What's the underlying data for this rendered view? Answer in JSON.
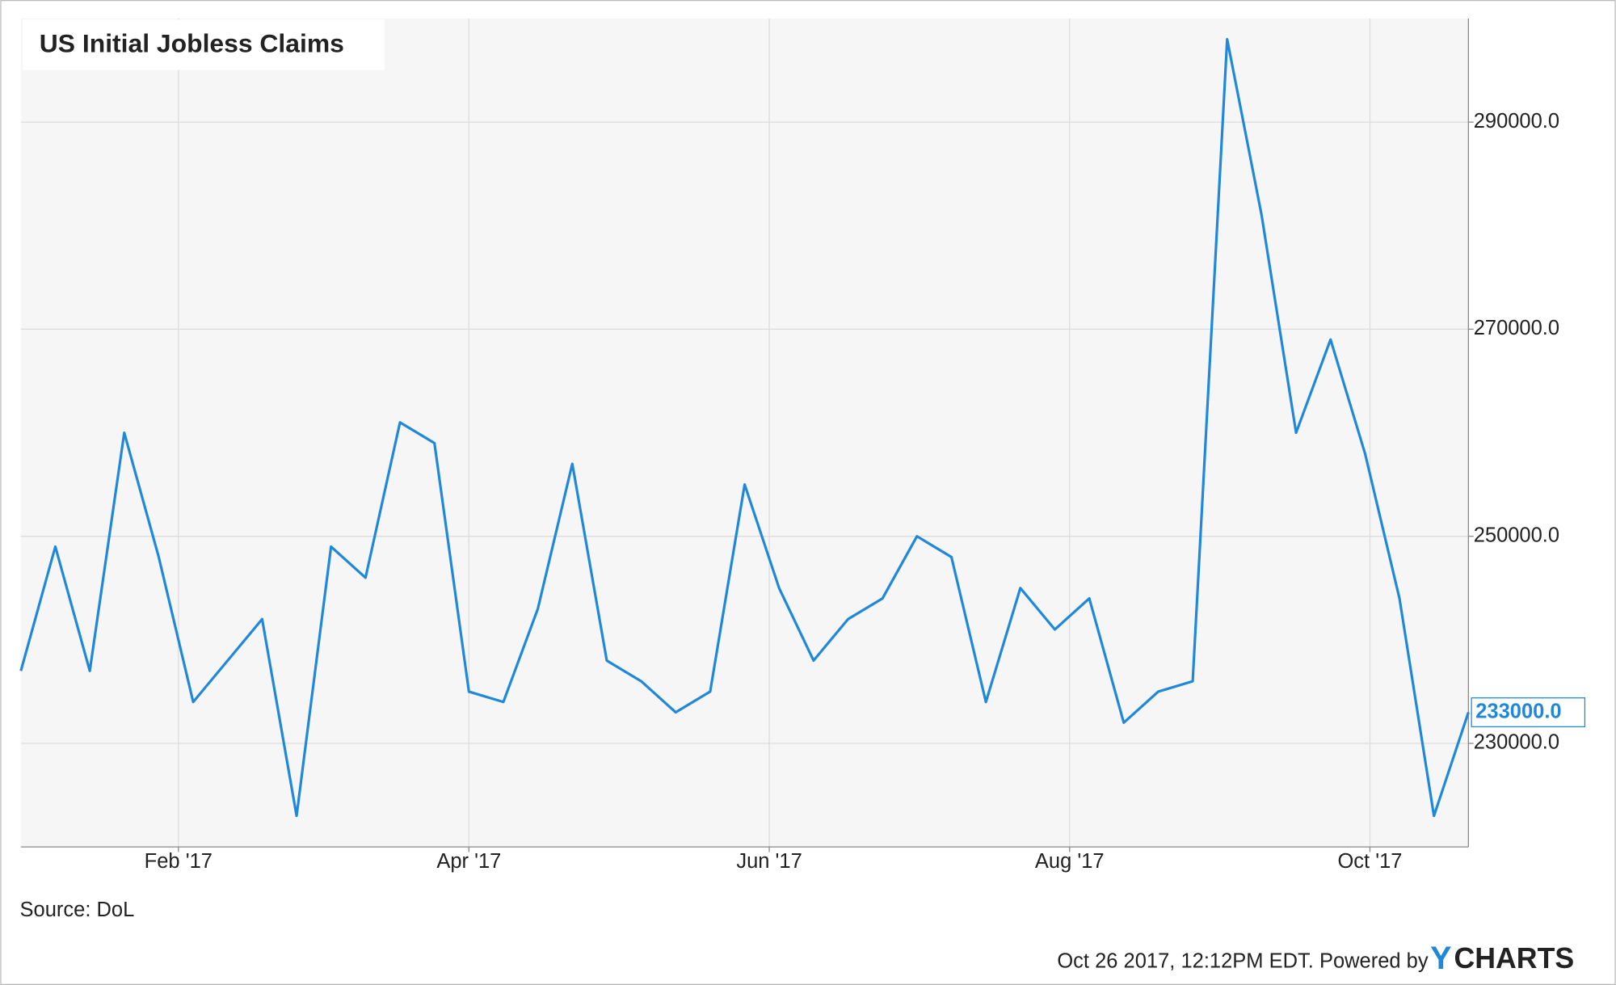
{
  "chart_data": {
    "type": "line",
    "title": "US Initial Jobless Claims",
    "x": [
      "2016-12-31",
      "2017-01-07",
      "2017-01-14",
      "2017-01-21",
      "2017-01-28",
      "2017-02-04",
      "2017-02-11",
      "2017-02-18",
      "2017-02-25",
      "2017-03-04",
      "2017-03-11",
      "2017-03-18",
      "2017-03-25",
      "2017-04-01",
      "2017-04-08",
      "2017-04-15",
      "2017-04-22",
      "2017-04-29",
      "2017-05-06",
      "2017-05-13",
      "2017-05-20",
      "2017-05-27",
      "2017-06-03",
      "2017-06-10",
      "2017-06-17",
      "2017-06-24",
      "2017-07-01",
      "2017-07-08",
      "2017-07-15",
      "2017-07-22",
      "2017-07-29",
      "2017-08-05",
      "2017-08-12",
      "2017-08-19",
      "2017-08-26",
      "2017-09-02",
      "2017-09-09",
      "2017-09-16",
      "2017-09-23",
      "2017-09-30",
      "2017-10-07",
      "2017-10-14",
      "2017-10-21"
    ],
    "series": [
      {
        "name": "US Initial Jobless Claims",
        "color": "#1f88d8",
        "values": [
          237000,
          249000,
          237000,
          260000,
          248000,
          234000,
          238000,
          242000,
          223000,
          249000,
          246000,
          261000,
          259000,
          235000,
          234000,
          243000,
          257000,
          238000,
          236000,
          233000,
          235000,
          255000,
          245000,
          238000,
          242000,
          244000,
          250000,
          248000,
          234000,
          245000,
          241000,
          244000,
          232000,
          235000,
          236000,
          298000,
          281000,
          260000,
          269000,
          258000,
          244000,
          223000,
          233000
        ],
        "value_labels": [
          null,
          null,
          null,
          null,
          null,
          null,
          null,
          null,
          null,
          null,
          null,
          null,
          null,
          null,
          null,
          null,
          null,
          null,
          null,
          null,
          null,
          null,
          null,
          null,
          null,
          null,
          null,
          null,
          null,
          null,
          null,
          null,
          null,
          null,
          null,
          null,
          null,
          null,
          null,
          null,
          null,
          null,
          "233000.0"
        ]
      }
    ],
    "xlim": [
      "2016-12-31",
      "2017-10-21"
    ],
    "xticks": [
      {
        "value": "2017-02-01",
        "label": "Feb '17"
      },
      {
        "value": "2017-04-01",
        "label": "Apr '17"
      },
      {
        "value": "2017-06-01",
        "label": "Jun '17"
      },
      {
        "value": "2017-08-01",
        "label": "Aug '17"
      },
      {
        "value": "2017-10-01",
        "label": "Oct '17"
      }
    ],
    "ylim": [
      220000,
      300000
    ],
    "yticks": [
      {
        "value": 230000,
        "label": "230000.0"
      },
      {
        "value": 250000,
        "label": "250000.0"
      },
      {
        "value": 270000,
        "label": "270000.0"
      },
      {
        "value": 290000,
        "label": "290000.0"
      }
    ],
    "grid": true,
    "source": "Source: DoL",
    "timestamp": "Oct 26 2017, 12:12PM EDT. Powered by",
    "logo_y": "Y",
    "logo_rest": "CHARTS"
  }
}
